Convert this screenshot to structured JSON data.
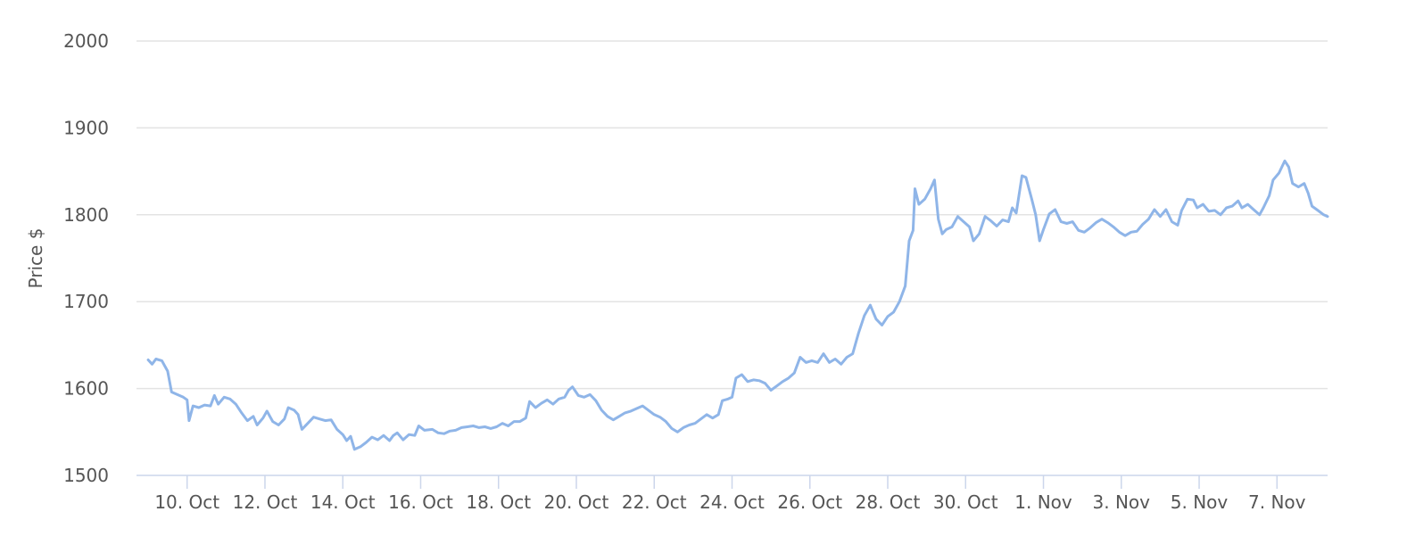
{
  "chart_data": {
    "type": "line",
    "title": "",
    "xlabel": "",
    "ylabel": "Price $",
    "ylim": [
      1500,
      2000
    ],
    "yticks": [
      1500,
      1600,
      1700,
      1800,
      1900,
      2000
    ],
    "x_tick_labels": [
      "10. Oct",
      "12. Oct",
      "14. Oct",
      "16. Oct",
      "18. Oct",
      "20. Oct",
      "22. Oct",
      "24. Oct",
      "26. Oct",
      "28. Oct",
      "30. Oct",
      "1. Nov",
      "3. Nov",
      "5. Nov",
      "7. Nov"
    ],
    "x_tick_days": [
      10,
      12,
      14,
      16,
      18,
      20,
      22,
      24,
      26,
      28,
      30,
      32,
      34,
      36,
      38
    ],
    "xlim_days": [
      8.7,
      39.3
    ],
    "grid": true,
    "legend": "none",
    "line_color": "#8fb5e8",
    "series": [
      {
        "points": [
          [
            9.0,
            1633
          ],
          [
            9.1,
            1628
          ],
          [
            9.2,
            1634
          ],
          [
            9.35,
            1632
          ],
          [
            9.5,
            1620
          ],
          [
            9.6,
            1596
          ],
          [
            9.75,
            1593
          ],
          [
            9.9,
            1590
          ],
          [
            10.0,
            1587
          ],
          [
            10.05,
            1563
          ],
          [
            10.15,
            1580
          ],
          [
            10.3,
            1578
          ],
          [
            10.45,
            1581
          ],
          [
            10.6,
            1580
          ],
          [
            10.7,
            1592
          ],
          [
            10.8,
            1582
          ],
          [
            10.95,
            1590
          ],
          [
            11.1,
            1588
          ],
          [
            11.25,
            1582
          ],
          [
            11.4,
            1572
          ],
          [
            11.55,
            1563
          ],
          [
            11.7,
            1568
          ],
          [
            11.8,
            1558
          ],
          [
            11.95,
            1566
          ],
          [
            12.05,
            1574
          ],
          [
            12.2,
            1562
          ],
          [
            12.35,
            1558
          ],
          [
            12.5,
            1565
          ],
          [
            12.6,
            1578
          ],
          [
            12.75,
            1575
          ],
          [
            12.85,
            1570
          ],
          [
            12.95,
            1553
          ],
          [
            13.1,
            1560
          ],
          [
            13.25,
            1567
          ],
          [
            13.4,
            1565
          ],
          [
            13.55,
            1563
          ],
          [
            13.7,
            1564
          ],
          [
            13.85,
            1553
          ],
          [
            14.0,
            1547
          ],
          [
            14.1,
            1540
          ],
          [
            14.2,
            1545
          ],
          [
            14.3,
            1530
          ],
          [
            14.45,
            1533
          ],
          [
            14.6,
            1538
          ],
          [
            14.75,
            1544
          ],
          [
            14.9,
            1541
          ],
          [
            15.05,
            1546
          ],
          [
            15.2,
            1540
          ],
          [
            15.3,
            1546
          ],
          [
            15.4,
            1549
          ],
          [
            15.55,
            1541
          ],
          [
            15.7,
            1547
          ],
          [
            15.85,
            1546
          ],
          [
            15.95,
            1557
          ],
          [
            16.1,
            1552
          ],
          [
            16.3,
            1553
          ],
          [
            16.45,
            1549
          ],
          [
            16.6,
            1548
          ],
          [
            16.75,
            1551
          ],
          [
            16.9,
            1552
          ],
          [
            17.05,
            1555
          ],
          [
            17.2,
            1556
          ],
          [
            17.35,
            1557
          ],
          [
            17.5,
            1555
          ],
          [
            17.65,
            1556
          ],
          [
            17.8,
            1554
          ],
          [
            17.95,
            1556
          ],
          [
            18.1,
            1560
          ],
          [
            18.25,
            1557
          ],
          [
            18.4,
            1562
          ],
          [
            18.55,
            1562
          ],
          [
            18.7,
            1566
          ],
          [
            18.8,
            1585
          ],
          [
            18.95,
            1578
          ],
          [
            19.1,
            1583
          ],
          [
            19.25,
            1587
          ],
          [
            19.4,
            1582
          ],
          [
            19.55,
            1588
          ],
          [
            19.7,
            1590
          ],
          [
            19.8,
            1598
          ],
          [
            19.9,
            1602
          ],
          [
            20.05,
            1592
          ],
          [
            20.2,
            1590
          ],
          [
            20.35,
            1593
          ],
          [
            20.5,
            1586
          ],
          [
            20.65,
            1575
          ],
          [
            20.8,
            1568
          ],
          [
            20.95,
            1564
          ],
          [
            21.1,
            1568
          ],
          [
            21.25,
            1572
          ],
          [
            21.4,
            1574
          ],
          [
            21.55,
            1577
          ],
          [
            21.7,
            1580
          ],
          [
            21.85,
            1575
          ],
          [
            22.0,
            1570
          ],
          [
            22.15,
            1567
          ],
          [
            22.3,
            1562
          ],
          [
            22.45,
            1554
          ],
          [
            22.6,
            1550
          ],
          [
            22.75,
            1555
          ],
          [
            22.9,
            1558
          ],
          [
            23.05,
            1560
          ],
          [
            23.2,
            1565
          ],
          [
            23.35,
            1570
          ],
          [
            23.5,
            1566
          ],
          [
            23.65,
            1570
          ],
          [
            23.75,
            1586
          ],
          [
            23.9,
            1588
          ],
          [
            24.0,
            1590
          ],
          [
            24.1,
            1612
          ],
          [
            24.25,
            1616
          ],
          [
            24.4,
            1608
          ],
          [
            24.55,
            1610
          ],
          [
            24.7,
            1609
          ],
          [
            24.85,
            1606
          ],
          [
            25.0,
            1598
          ],
          [
            25.15,
            1603
          ],
          [
            25.3,
            1608
          ],
          [
            25.45,
            1612
          ],
          [
            25.6,
            1618
          ],
          [
            25.75,
            1636
          ],
          [
            25.9,
            1630
          ],
          [
            26.05,
            1632
          ],
          [
            26.2,
            1630
          ],
          [
            26.35,
            1640
          ],
          [
            26.5,
            1630
          ],
          [
            26.65,
            1634
          ],
          [
            26.8,
            1628
          ],
          [
            26.95,
            1636
          ],
          [
            27.1,
            1640
          ],
          [
            27.25,
            1664
          ],
          [
            27.4,
            1684
          ],
          [
            27.55,
            1696
          ],
          [
            27.7,
            1680
          ],
          [
            27.85,
            1673
          ],
          [
            28.0,
            1683
          ],
          [
            28.15,
            1688
          ],
          [
            28.3,
            1700
          ],
          [
            28.45,
            1718
          ],
          [
            28.55,
            1770
          ],
          [
            28.65,
            1782
          ],
          [
            28.7,
            1830
          ],
          [
            28.8,
            1812
          ],
          [
            28.95,
            1818
          ],
          [
            29.1,
            1830
          ],
          [
            29.2,
            1840
          ],
          [
            29.3,
            1795
          ],
          [
            29.4,
            1778
          ],
          [
            29.5,
            1783
          ],
          [
            29.65,
            1786
          ],
          [
            29.8,
            1798
          ],
          [
            29.95,
            1792
          ],
          [
            30.1,
            1786
          ],
          [
            30.2,
            1770
          ],
          [
            30.35,
            1778
          ],
          [
            30.5,
            1798
          ],
          [
            30.65,
            1793
          ],
          [
            30.8,
            1787
          ],
          [
            30.95,
            1794
          ],
          [
            31.1,
            1792
          ],
          [
            31.2,
            1808
          ],
          [
            31.3,
            1802
          ],
          [
            31.45,
            1845
          ],
          [
            31.55,
            1843
          ],
          [
            31.7,
            1818
          ],
          [
            31.8,
            1800
          ],
          [
            31.9,
            1770
          ],
          [
            32.0,
            1783
          ],
          [
            32.15,
            1801
          ],
          [
            32.3,
            1806
          ],
          [
            32.45,
            1792
          ],
          [
            32.6,
            1790
          ],
          [
            32.75,
            1792
          ],
          [
            32.9,
            1782
          ],
          [
            33.05,
            1780
          ],
          [
            33.2,
            1785
          ],
          [
            33.35,
            1791
          ],
          [
            33.5,
            1795
          ],
          [
            33.65,
            1791
          ],
          [
            33.8,
            1786
          ],
          [
            33.95,
            1780
          ],
          [
            34.1,
            1776
          ],
          [
            34.25,
            1780
          ],
          [
            34.4,
            1781
          ],
          [
            34.55,
            1789
          ],
          [
            34.7,
            1795
          ],
          [
            34.85,
            1806
          ],
          [
            35.0,
            1798
          ],
          [
            35.15,
            1806
          ],
          [
            35.3,
            1792
          ],
          [
            35.45,
            1788
          ],
          [
            35.55,
            1805
          ],
          [
            35.7,
            1818
          ],
          [
            35.85,
            1817
          ],
          [
            35.95,
            1808
          ],
          [
            36.1,
            1812
          ],
          [
            36.25,
            1804
          ],
          [
            36.4,
            1805
          ],
          [
            36.55,
            1800
          ],
          [
            36.7,
            1808
          ],
          [
            36.85,
            1810
          ],
          [
            37.0,
            1816
          ],
          [
            37.1,
            1808
          ],
          [
            37.25,
            1812
          ],
          [
            37.4,
            1806
          ],
          [
            37.55,
            1800
          ],
          [
            37.65,
            1808
          ],
          [
            37.8,
            1822
          ],
          [
            37.9,
            1840
          ],
          [
            38.05,
            1848
          ],
          [
            38.2,
            1862
          ],
          [
            38.3,
            1855
          ],
          [
            38.4,
            1836
          ],
          [
            38.55,
            1832
          ],
          [
            38.7,
            1836
          ],
          [
            38.8,
            1825
          ],
          [
            38.9,
            1810
          ],
          [
            39.05,
            1805
          ],
          [
            39.2,
            1800
          ],
          [
            39.3,
            1798
          ]
        ]
      }
    ]
  }
}
